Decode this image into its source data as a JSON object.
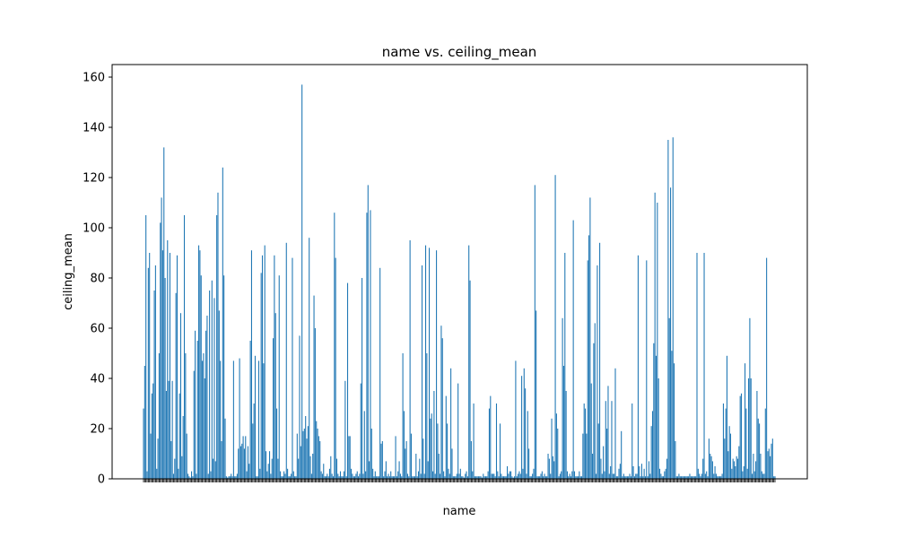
{
  "chart_data": {
    "type": "bar",
    "title": "name vs. ceiling_mean",
    "xlabel": "name",
    "ylabel": "ceiling_mean",
    "ylim": [
      0,
      165
    ],
    "yticks": [
      0,
      20,
      40,
      60,
      80,
      100,
      120,
      140,
      160
    ],
    "grid": false,
    "bar_color": "#1f77b4",
    "xtick_labels_note_free": true,
    "values": [
      28,
      45,
      105,
      3,
      84,
      90,
      18,
      34,
      38,
      75,
      85,
      4,
      16,
      50,
      102,
      112,
      91,
      132,
      80,
      35,
      95,
      39,
      90,
      15,
      39,
      2,
      8,
      74,
      89,
      4,
      34,
      66,
      9,
      25,
      105,
      50,
      18,
      2,
      1,
      0.5,
      3,
      1,
      43,
      59,
      2,
      55,
      93,
      91,
      81,
      47,
      50,
      40,
      59,
      65,
      2,
      75,
      3,
      79,
      8,
      72,
      7,
      105,
      114,
      67,
      47,
      15,
      124,
      81,
      24,
      1,
      0.5,
      1,
      1,
      2,
      1,
      47,
      1,
      1,
      2,
      12,
      48,
      13,
      14,
      17,
      12,
      17,
      3,
      13,
      6,
      55,
      91,
      22,
      30,
      49,
      1,
      1,
      47,
      4,
      82,
      89,
      46,
      93,
      11,
      3,
      6,
      11,
      2,
      8,
      56,
      89,
      66,
      28,
      8,
      81,
      3,
      1,
      1,
      3,
      2,
      94,
      4,
      1,
      1,
      2,
      88,
      3,
      1,
      1,
      18,
      8,
      57,
      13,
      157,
      19,
      20,
      25,
      16,
      21,
      96,
      9,
      2,
      10,
      73,
      60,
      23,
      20,
      17,
      15,
      3,
      2,
      6,
      1,
      1,
      2,
      1,
      4,
      9,
      2,
      1,
      106,
      88,
      8,
      2,
      1,
      3,
      1,
      1,
      3,
      39,
      1,
      78,
      17,
      17,
      4,
      2,
      1,
      1,
      2,
      3,
      1,
      2,
      38,
      80,
      2,
      27,
      3,
      106,
      117,
      7,
      107,
      20,
      4,
      1,
      3,
      1,
      1,
      1,
      84,
      14,
      15,
      1,
      3,
      7,
      1,
      2,
      1,
      3,
      1,
      1,
      1,
      17,
      1,
      3,
      7,
      2,
      1,
      50,
      27,
      12,
      15,
      2,
      1,
      95,
      18,
      1,
      1,
      1,
      10,
      1,
      3,
      8,
      2,
      85,
      16,
      2,
      93,
      50,
      7,
      92,
      24,
      26,
      3,
      35,
      2,
      91,
      22,
      10,
      2,
      61,
      56,
      3,
      1,
      33,
      22,
      4,
      2,
      44,
      12,
      1,
      1,
      1,
      2,
      38,
      2,
      4,
      1,
      1,
      0.5,
      2,
      3,
      1,
      93,
      79,
      15,
      3,
      30,
      1,
      1,
      1,
      1,
      1,
      1,
      0.5,
      2,
      1,
      1,
      1,
      3,
      28,
      33,
      2,
      2,
      2,
      1,
      30,
      3,
      1,
      22,
      2,
      1,
      1,
      1,
      1,
      5,
      2,
      3,
      3,
      1,
      0.5,
      1,
      47,
      1,
      2,
      3,
      2,
      41,
      4,
      44,
      36,
      2,
      27,
      12,
      1,
      1,
      2,
      4,
      117,
      67,
      1,
      1,
      1,
      2,
      3,
      1,
      2,
      1,
      1,
      10,
      8,
      2,
      24,
      9,
      7,
      121,
      26,
      20,
      1,
      2,
      3,
      64,
      45,
      90,
      35,
      3,
      1,
      2,
      1,
      3,
      103,
      3,
      1,
      1,
      1,
      3,
      1,
      1,
      18,
      30,
      28,
      18,
      87,
      97,
      112,
      38,
      10,
      54,
      62,
      2,
      85,
      22,
      94,
      8,
      2,
      13,
      3,
      31,
      20,
      37,
      2,
      5,
      31,
      2,
      2,
      44,
      1,
      1,
      4,
      6,
      19,
      1,
      2,
      1,
      1,
      1,
      1,
      2,
      1,
      30,
      5,
      1,
      2,
      2,
      89,
      5,
      1,
      6,
      1,
      4,
      1,
      87,
      1,
      7,
      2,
      21,
      27,
      54,
      114,
      49,
      110,
      40,
      4,
      2,
      1,
      1,
      3,
      4,
      8,
      135,
      64,
      116,
      51,
      136,
      46,
      15,
      1,
      1,
      2,
      1,
      1,
      1,
      1,
      1,
      1,
      1,
      1,
      2,
      1,
      1,
      1,
      1,
      1,
      90,
      4,
      2,
      1,
      2,
      8,
      90,
      2,
      3,
      1,
      16,
      10,
      9,
      7,
      2,
      5,
      2,
      1,
      1,
      1,
      1,
      2,
      30,
      16,
      28,
      49,
      11,
      21,
      18,
      4,
      8,
      7,
      5,
      9,
      8,
      13,
      33,
      34,
      3,
      5,
      46,
      28,
      4,
      40,
      64,
      40,
      2,
      10,
      3,
      7,
      35,
      24,
      22,
      10,
      3,
      2,
      2,
      28,
      88,
      11,
      12,
      9,
      14,
      16,
      1,
      1
    ]
  }
}
